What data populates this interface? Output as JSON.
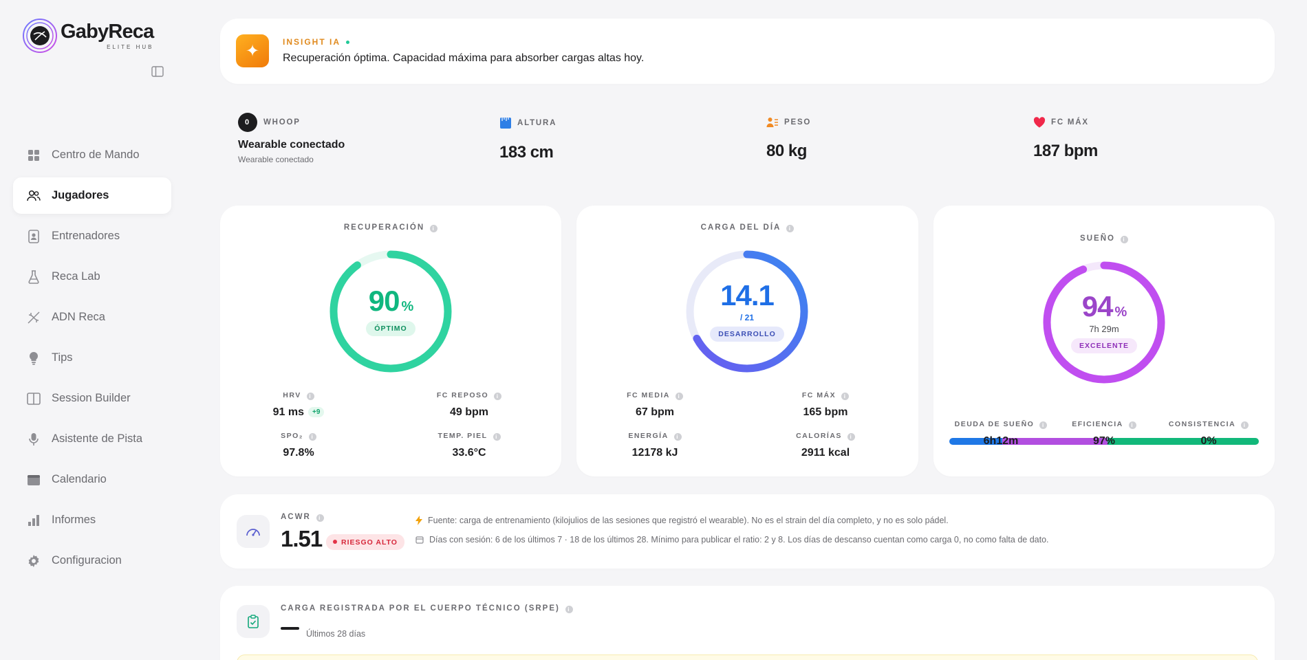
{
  "brand": {
    "name": "GabyReca",
    "sub": "ELITE HUB"
  },
  "nav": [
    {
      "label": "Centro de Mando",
      "icon": "grid-icon"
    },
    {
      "label": "Jugadores",
      "icon": "users-icon",
      "active": true
    },
    {
      "label": "Entrenadores",
      "icon": "id-badge-icon"
    },
    {
      "label": "Reca Lab",
      "icon": "flask-icon"
    },
    {
      "label": "ADN Reca",
      "icon": "dna-icon"
    },
    {
      "label": "Tips",
      "icon": "lightbulb-icon"
    },
    {
      "label": "Session Builder",
      "icon": "columns-icon"
    },
    {
      "label": "Asistente de Pista",
      "icon": "microphone-icon"
    },
    {
      "label": "Calendario",
      "icon": "calendar-icon"
    },
    {
      "label": "Informes",
      "icon": "bar-chart-icon"
    },
    {
      "label": "Configuracion",
      "icon": "gear-icon"
    }
  ],
  "insight": {
    "label": "INSIGHT IA",
    "text": "Recuperación óptima. Capacidad máxima para absorber cargas altas hoy."
  },
  "stats": {
    "whoop": {
      "label": "WHOOP",
      "badge": "0",
      "title": "Wearable conectado",
      "sub": "Wearable conectado"
    },
    "altura": {
      "label": "ALTURA",
      "value": "183 cm"
    },
    "peso": {
      "label": "PESO",
      "value": "80 kg"
    },
    "fcmax": {
      "label": "FC MÁX",
      "value": "187 bpm"
    }
  },
  "recovery": {
    "title": "RECUPERACIÓN",
    "value": "90",
    "unit": "%",
    "percent": 90,
    "status": "ÓPTIMO",
    "color": "#2fd3a0",
    "metrics": {
      "hrv": {
        "label": "HRV",
        "value": "91 ms",
        "delta": "+9"
      },
      "fc_reposo": {
        "label": "FC REPOSO",
        "value": "49 bpm"
      },
      "spo2": {
        "label": "SPO₂",
        "value": "97.8%"
      },
      "temp": {
        "label": "TEMP. PIEL",
        "value": "33.6°C"
      }
    }
  },
  "load": {
    "title": "CARGA DEL DÍA",
    "value": "14.1",
    "max_label": "/ 21",
    "fraction": 0.671,
    "status": "DESARROLLO",
    "color": "#4a6cf0",
    "metrics": {
      "fc_media": {
        "label": "FC MEDIA",
        "value": "67 bpm"
      },
      "fc_max": {
        "label": "FC MÁX",
        "value": "165 bpm"
      },
      "energia": {
        "label": "ENERGÍA",
        "value": "12178 kJ"
      },
      "calorias": {
        "label": "CALORÍAS",
        "value": "2911 kcal"
      }
    }
  },
  "sleep": {
    "title": "SUEÑO",
    "value": "94",
    "unit": "%",
    "percent": 94,
    "duration": "7h 29m",
    "status": "EXCELENTE",
    "color": "#c04ef0",
    "bar_segments": [
      {
        "fraction": 0.17,
        "color": "#1f78e6"
      },
      {
        "fraction": 0.34,
        "color": "#b24ee0"
      },
      {
        "fraction": 0.49,
        "color": "#12b87a"
      }
    ],
    "metrics": {
      "deuda": {
        "label": "DEUDA DE SUEÑO",
        "value": "6h12m"
      },
      "eficiencia": {
        "label": "EFICIENCIA",
        "value": "97%"
      },
      "consistencia": {
        "label": "CONSISTENCIA",
        "value": "0%"
      }
    }
  },
  "acwr": {
    "label": "ACWR",
    "value": "1.51",
    "risk": "RIESGO ALTO",
    "note1": "Fuente: carga de entrenamiento (kilojulios de las sesiones que registró el wearable). No es el strain del día completo, y no es solo pádel.",
    "note2": "Días con sesión: 6 de los últimos 7 · 18 de los últimos 28. Mínimo para publicar el ratio: 2 y 8. Los días de descanso cuentan como carga 0, no como falta de dato."
  },
  "srpe": {
    "label": "CARGA REGISTRADA POR EL CUERPO TÉCNICO (SRPE)",
    "sub": "Últimos 28 días"
  }
}
